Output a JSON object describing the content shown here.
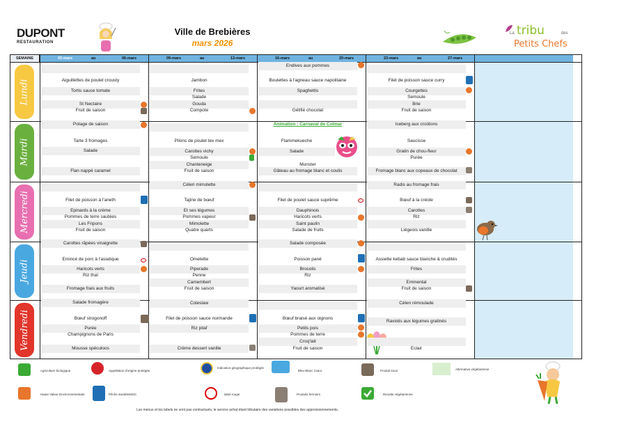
{
  "header": {
    "logo_main": "DUPONT",
    "logo_sub": "RESTAURATION",
    "title": "Ville de Brebières",
    "subtitle": "mars 2026",
    "tribu_main": "tribu",
    "tribu_left": "La",
    "tribu_right": "des",
    "tribu_sub": "Petits Chefs"
  },
  "week_header": {
    "semaine": "SEMAINE",
    "au": "au",
    "weeks": [
      {
        "from": "02-mars",
        "to": "06-mars"
      },
      {
        "from": "09-mars",
        "to": "13-mars"
      },
      {
        "from": "16-mars",
        "to": "20-mars"
      },
      {
        "from": "23-mars",
        "to": "27-mars"
      }
    ]
  },
  "days": [
    {
      "name": "Lundi",
      "color": "#f7c842"
    },
    {
      "name": "Mardi",
      "color": "#6ab03f"
    },
    {
      "name": "Mercredi",
      "color": "#e86fb0"
    },
    {
      "name": "Jeudi",
      "color": "#4aa8e0"
    },
    {
      "name": "Vendredi",
      "color": "#e2352b"
    }
  ],
  "menus": {
    "lundi": [
      [
        "",
        "Aiguillettes de poulet crousty",
        "Tortis sauce tomate",
        "",
        "St Nectaire",
        "Fruit de saison"
      ],
      [
        "",
        "Jambon",
        "Frites",
        "Salade",
        "Gouda",
        "Compote"
      ],
      [
        "Endives aux pommes",
        "Boulettes à l'agneau sauce napolitaine",
        "Spaghettis",
        "",
        "",
        "Gélifié chocolat"
      ],
      [
        "",
        "Filet de poisson sauce curry",
        "Courgettes",
        "Semoule",
        "Brie",
        "Fruit de saison"
      ]
    ],
    "mardi": [
      [
        "Potage de saison",
        "Tarte 3 fromages",
        "Salade",
        "",
        "Flan nappé caramel"
      ],
      [
        "",
        "Pilons de poulet tex mex",
        "Carottes vichy",
        "Semoule",
        "Chanteneige",
        "Fruit de saison"
      ],
      [
        "Animation : Carnaval de Colmar",
        "Flammekueche",
        "Salade",
        "Munster",
        "Gâteau au fromage blanc et coulis"
      ],
      [
        "Iceberg aux croûtons",
        "Saucisse",
        "Gratin de chou-fleur",
        "Purée",
        "Fromage blanc aux copeaux de chocolat"
      ]
    ],
    "mercredi": [
      [
        "",
        "Filet de poisson à l'aneth",
        "Epinards à la crème",
        "Pommes de terre sautées",
        "Les Fripons",
        "Fruit de saison"
      ],
      [
        "Céleri mimolette",
        "Tajine de bœuf",
        "Et ses légumes",
        "Pommes vapeur",
        "Mimolette",
        "Quatre quarts"
      ],
      [
        "",
        "Filet de poulet sauce suprême",
        "Dauphinois",
        "Haricots verts",
        "Saint paulin",
        "Salade de fruits"
      ],
      [
        "Radis au fromage frais",
        "Bœuf à la créole",
        "Carottes",
        "Riz",
        "",
        "Liégeois vanille"
      ]
    ],
    "jeudi": [
      [
        "Carottes râpées vinaigrette",
        "Emincé de porc à l'asiatique",
        "Haricots verts",
        "Riz thaï",
        "Fromage frais aux fruits"
      ],
      [
        "",
        "Omelette",
        "Piperade",
        "Penne",
        "Camembert",
        "Fruit de saison"
      ],
      [
        "Salade composée",
        "Poisson pané",
        "Brocolis",
        "Riz",
        "Yaourt aromatisé"
      ],
      [
        "",
        "Assiette kebab sauce blanche & crudités",
        "Frites",
        "",
        "Emmental",
        "Fruit de saison"
      ]
    ],
    "vendredi": [
      [
        "Salade fromagère",
        "Bœuf strogonoff",
        "Purée",
        "Champignons de Paris",
        "Mousse spéculoos"
      ],
      [
        "Coleslaw",
        "Filet de poisson sauce normande",
        "Riz pilaf",
        "",
        "Crème dessert vanille"
      ],
      [
        "",
        "Bœuf braisé aux oignons",
        "Petits pois",
        "Pommes de terre",
        "Croq'lait",
        "Fruit de saison"
      ],
      [
        "Célen rémoulade",
        "",
        "Raviolis aux légumes gratinés",
        "",
        "",
        "Eclair"
      ]
    ]
  },
  "legend": [
    {
      "icon": "ab-bio-icon",
      "label": "Agriculture biologique"
    },
    {
      "icon": "aop-icon",
      "label": "Appellation d'origine protégée"
    },
    {
      "icon": "igp-icon",
      "label": "Indication géographique protégée"
    },
    {
      "icon": "bleu-blanc-coeur-icon",
      "label": "Bleu Blanc Cœur"
    },
    {
      "icon": "produit-local-icon",
      "label": "Produit local"
    },
    {
      "icon": "alternative-vegetarienne-swatch",
      "label": "Alternative végétarienne"
    },
    {
      "icon": "hve-icon",
      "label": "Haute Valeur Environnementale"
    },
    {
      "icon": "msc-icon",
      "label": "Pêche durable/MSC"
    },
    {
      "icon": "label-rouge-icon",
      "label": "label rouge"
    },
    {
      "icon": "produits-fermiers-icon",
      "label": "Produits fermiers"
    },
    {
      "icon": "recette-vegetarienne-icon",
      "label": "Recette végétarienne"
    }
  ],
  "footer_note": "Les menus et les labels ne sont pas contractuels, le service achat étant tributaire des variations possibles des approvisionnements."
}
